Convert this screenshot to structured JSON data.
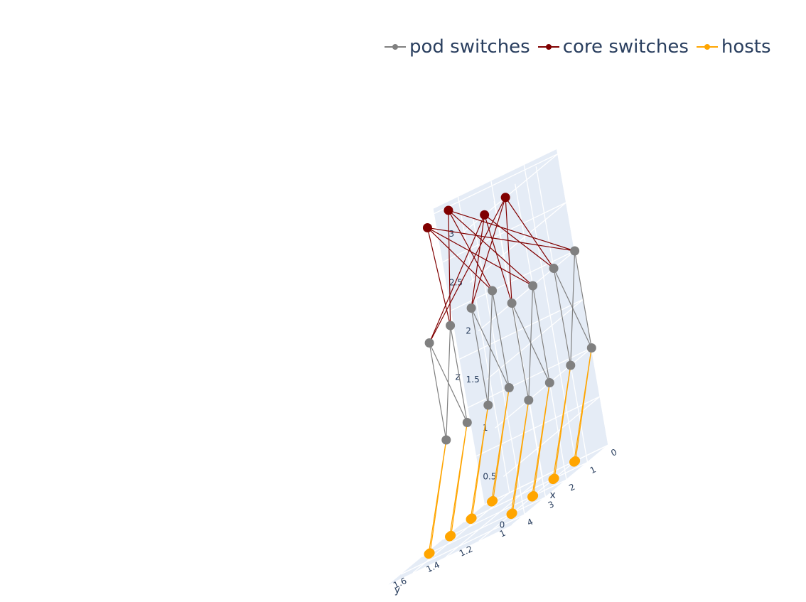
{
  "chart_data": {
    "type": "scatter3d",
    "title": "",
    "colors": {
      "pod": "#808080",
      "core": "#800000",
      "host": "#FFA500",
      "pane": "#E5ECF6"
    },
    "legend": [
      {
        "key": "pod",
        "label": "pod switches"
      },
      {
        "key": "core",
        "label": "core switches"
      },
      {
        "key": "host",
        "label": "hosts"
      }
    ],
    "axes": {
      "x": {
        "title": "x",
        "range": [
          0,
          4.6
        ],
        "ticks": [
          0,
          1,
          2,
          3,
          4
        ]
      },
      "y": {
        "title": "y",
        "range": [
          1,
          1.75
        ],
        "ticks": [
          1,
          1.2,
          1.4,
          1.6
        ]
      },
      "z": {
        "title": "z",
        "range": [
          0,
          3.05
        ],
        "ticks": [
          0,
          0.5,
          1,
          1.5,
          2,
          2.5,
          3
        ]
      }
    },
    "core_switches": [
      {
        "x": 0.5,
        "y": 1.6,
        "z": 3
      },
      {
        "x": 1.5,
        "y": 1.6,
        "z": 3
      },
      {
        "x": 2.5,
        "y": 1.0,
        "z": 3
      },
      {
        "x": 3.5,
        "y": 1.0,
        "z": 3
      }
    ],
    "pod_switches": [
      {
        "x": 0,
        "y": 1.5,
        "z": 2
      },
      {
        "x": 1,
        "y": 1.5,
        "z": 2
      },
      {
        "x": 0,
        "y": 1.5,
        "z": 1
      },
      {
        "x": 1,
        "y": 1.5,
        "z": 1
      },
      {
        "x": 0,
        "y": 1.0,
        "z": 2
      },
      {
        "x": 1,
        "y": 1.0,
        "z": 2
      },
      {
        "x": 0,
        "y": 1.0,
        "z": 1
      },
      {
        "x": 1,
        "y": 1.0,
        "z": 1
      },
      {
        "x": 2,
        "y": 1.5,
        "z": 2
      },
      {
        "x": 3,
        "y": 1.5,
        "z": 2
      },
      {
        "x": 2,
        "y": 1.5,
        "z": 1
      },
      {
        "x": 3,
        "y": 1.5,
        "z": 1
      },
      {
        "x": 2,
        "y": 1.0,
        "z": 2
      },
      {
        "x": 3,
        "y": 1.0,
        "z": 2
      },
      {
        "x": 2,
        "y": 1.0,
        "z": 1
      },
      {
        "x": 3,
        "y": 1.0,
        "z": 1
      }
    ],
    "pod_links": [
      [
        0,
        2
      ],
      [
        0,
        3
      ],
      [
        1,
        2
      ],
      [
        1,
        3
      ],
      [
        4,
        6
      ],
      [
        4,
        7
      ],
      [
        5,
        6
      ],
      [
        5,
        7
      ],
      [
        8,
        10
      ],
      [
        8,
        11
      ],
      [
        9,
        10
      ],
      [
        9,
        11
      ],
      [
        12,
        14
      ],
      [
        12,
        15
      ],
      [
        13,
        14
      ],
      [
        13,
        15
      ]
    ],
    "core_links": [
      [
        0,
        0
      ],
      [
        0,
        4
      ],
      [
        0,
        8
      ],
      [
        0,
        12
      ],
      [
        1,
        0
      ],
      [
        1,
        4
      ],
      [
        1,
        8
      ],
      [
        1,
        12
      ],
      [
        2,
        1
      ],
      [
        2,
        5
      ],
      [
        2,
        9
      ],
      [
        2,
        13
      ],
      [
        3,
        1
      ],
      [
        3,
        5
      ],
      [
        3,
        9
      ],
      [
        3,
        13
      ]
    ],
    "hosts": [
      {
        "x": 0,
        "y": 1.7,
        "z": 0,
        "parent": 2
      },
      {
        "x": 0.07,
        "y": 1.7,
        "z": 0,
        "parent": 2
      },
      {
        "x": 1,
        "y": 1.7,
        "z": 0,
        "parent": 3
      },
      {
        "x": 1.07,
        "y": 1.7,
        "z": 0,
        "parent": 3
      },
      {
        "x": 0,
        "y": 1.2,
        "z": 0,
        "parent": 6
      },
      {
        "x": 0.07,
        "y": 1.2,
        "z": 0,
        "parent": 6
      },
      {
        "x": 1,
        "y": 1.2,
        "z": 0,
        "parent": 7
      },
      {
        "x": 1.07,
        "y": 1.2,
        "z": 0,
        "parent": 7
      },
      {
        "x": 2,
        "y": 1.7,
        "z": 0,
        "parent": 10
      },
      {
        "x": 2.07,
        "y": 1.7,
        "z": 0,
        "parent": 10
      },
      {
        "x": 3,
        "y": 1.7,
        "z": 0,
        "parent": 11
      },
      {
        "x": 3.07,
        "y": 1.7,
        "z": 0,
        "parent": 11
      },
      {
        "x": 2,
        "y": 1.2,
        "z": 0,
        "parent": 14
      },
      {
        "x": 2.07,
        "y": 1.2,
        "z": 0,
        "parent": 14
      },
      {
        "x": 3,
        "y": 1.2,
        "z": 0,
        "parent": 15
      },
      {
        "x": 3.07,
        "y": 1.2,
        "z": 0,
        "parent": 15
      }
    ]
  }
}
